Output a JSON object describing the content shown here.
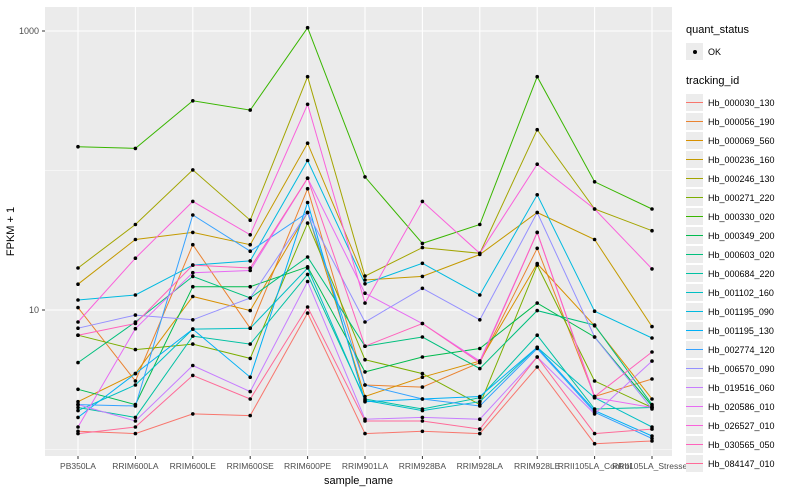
{
  "chart_data": {
    "type": "line",
    "title": "",
    "xlabel": "sample_name",
    "ylabel": "FPKM + 1",
    "y_scale": "log10",
    "y_tick_labels": [
      "1000",
      "10"
    ],
    "y_tick_values": [
      1000,
      10
    ],
    "y_minor_values": [
      100,
      1
    ],
    "ylim": [
      0.9,
      1500
    ],
    "grid": true,
    "legend_position": "right",
    "panel_bg": "#EBEBEB",
    "grid_color": "#FFFFFF",
    "axis_text_color": "#4D4D4D",
    "point_color": "#000000",
    "categories": [
      "PB350LA",
      "RRIM600LA",
      "RRIM600LE",
      "RRIM600SE",
      "RRIM600PE",
      "RRIM901LA",
      "RRIM928BA",
      "RRIM928LA",
      "RRIM928LE",
      "RRII105LA_Control",
      "RRII105LA_Stressed"
    ],
    "series": [
      {
        "name": "Hb_000030_130",
        "color": "#F8766D",
        "values": [
          1.35,
          1.3,
          1.8,
          1.75,
          9.5,
          1.3,
          1.35,
          1.3,
          3.9,
          1.1,
          1.15
        ]
      },
      {
        "name": "Hb_000056_190",
        "color": "#EA8331",
        "values": [
          10.4,
          3.1,
          29.4,
          7.4,
          74,
          2.9,
          2.8,
          4.2,
          27.7,
          2.4,
          3.2
        ]
      },
      {
        "name": "Hb_000069_560",
        "color": "#D89000",
        "values": [
          2.2,
          3.5,
          12.5,
          9.9,
          50,
          2.4,
          3.3,
          4.3,
          21.5,
          7.7,
          2.3
        ]
      },
      {
        "name": "Hb_000236_160",
        "color": "#C49A00",
        "values": [
          15.3,
          32,
          36,
          29.4,
          157,
          16.4,
          17.4,
          25,
          50,
          32,
          7.6
        ]
      },
      {
        "name": "Hb_000246_130",
        "color": "#A3A500",
        "values": [
          20,
          41,
          101,
          44,
          470,
          17.5,
          28,
          25.5,
          196,
          53,
          37
        ]
      },
      {
        "name": "Hb_000271_220",
        "color": "#7CAE00",
        "values": [
          6.6,
          5.2,
          5.7,
          4.5,
          42,
          4.4,
          3.5,
          2.1,
          21,
          3.1,
          2.0
        ]
      },
      {
        "name": "Hb_000330_020",
        "color": "#39B600",
        "values": [
          148,
          144,
          316,
          271,
          1056,
          90,
          30,
          41,
          470,
          83,
          53
        ]
      },
      {
        "name": "Hb_000349_200",
        "color": "#00BB4E",
        "values": [
          2.7,
          2.1,
          14.7,
          14.7,
          20.4,
          3.6,
          4.6,
          5.3,
          11.2,
          6.4,
          2.05
        ]
      },
      {
        "name": "Hb_000603_020",
        "color": "#00BF7D",
        "values": [
          4.2,
          8.2,
          17.4,
          12.2,
          24,
          5.5,
          6.4,
          3.8,
          9.9,
          7.8,
          2.1
        ]
      },
      {
        "name": "Hb_000684_220",
        "color": "#00C1A3",
        "values": [
          2.0,
          1.7,
          6.5,
          5.7,
          18,
          2.3,
          1.95,
          2.35,
          6.6,
          1.95,
          2.0
        ]
      },
      {
        "name": "Hb_001102_160",
        "color": "#00BFC4",
        "values": [
          1.9,
          2.9,
          7.3,
          7.4,
          20,
          2.25,
          1.9,
          2.2,
          5.4,
          2.35,
          1.45
        ]
      },
      {
        "name": "Hb_001195_090",
        "color": "#00BAE0",
        "values": [
          11.8,
          12.8,
          21,
          22.5,
          118,
          15.4,
          21.6,
          12.8,
          67,
          9.8,
          6.3
        ]
      },
      {
        "name": "Hb_001195_130",
        "color": "#00B0F6",
        "values": [
          1.7,
          3.5,
          7.3,
          3.3,
          59,
          2.2,
          2.3,
          2.4,
          5.4,
          1.9,
          1.25
        ]
      },
      {
        "name": "Hb_002774_120",
        "color": "#35A2FF",
        "values": [
          2.1,
          2.05,
          48,
          26.4,
          50,
          2.9,
          2.3,
          2.05,
          5.3,
          1.85,
          1.2
        ]
      },
      {
        "name": "Hb_006570_090",
        "color": "#9590FF",
        "values": [
          7.4,
          9.2,
          8.5,
          12.2,
          50,
          8.2,
          14.3,
          8.5,
          50,
          6.4,
          1.95
        ]
      },
      {
        "name": "Hb_019516_060",
        "color": "#C77CFF",
        "values": [
          2.1,
          1.6,
          4.0,
          2.6,
          16,
          1.65,
          1.7,
          1.65,
          4.6,
          1.8,
          4.3
        ]
      },
      {
        "name": "Hb_020586_010",
        "color": "#E76BF3",
        "values": [
          1.45,
          7.35,
          18.5,
          19.2,
          88,
          13.2,
          8.0,
          4.3,
          36,
          2.35,
          2.0
        ]
      },
      {
        "name": "Hb_026527_010",
        "color": "#FA62DB",
        "values": [
          8.2,
          23.5,
          60,
          34.6,
          298,
          11.2,
          60,
          25.5,
          111,
          53,
          19.7
        ]
      },
      {
        "name": "Hb_030565_050",
        "color": "#FF62BC",
        "values": [
          6.6,
          8.0,
          21,
          20,
          88,
          5.5,
          8.0,
          4.2,
          36,
          2.4,
          5.0
        ]
      },
      {
        "name": "Hb_084147_010",
        "color": "#FF6A98",
        "values": [
          1.3,
          1.45,
          3.4,
          2.3,
          10.5,
          1.6,
          1.6,
          1.4,
          4.6,
          1.3,
          1.4
        ]
      }
    ],
    "legend": {
      "quant_status_title": "quant_status",
      "quant_status_ok_label": "OK",
      "tracking_id_title": "tracking_id"
    }
  }
}
